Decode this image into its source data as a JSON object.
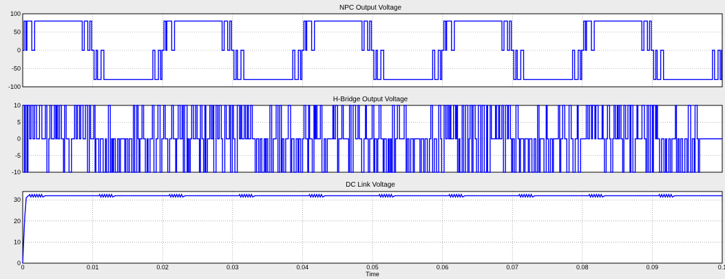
{
  "xlabel": "Time",
  "x_ticks": [
    "0",
    "0.01",
    "0.02",
    "0.03",
    "0.04",
    "0.05",
    "0.06",
    "0.07",
    "0.08",
    "0.09",
    "0.1"
  ],
  "xlim": [
    0,
    0.1
  ],
  "color": "#0000ff",
  "chart_data": [
    {
      "type": "line",
      "title": "NPC Output Voltage",
      "xlabel": "",
      "ylabel": "",
      "ylim": [
        -100,
        100
      ],
      "y_ticks": [
        "100",
        "50",
        "0",
        "-50",
        "-100"
      ],
      "grid": true,
      "series": [
        {
          "description_period_s": 0.02,
          "levels": [
            80,
            0,
            -80
          ]
        }
      ]
    },
    {
      "type": "line",
      "title": "H-Bridge Output Voltage",
      "xlabel": "",
      "ylabel": "",
      "ylim": [
        -10,
        10
      ],
      "y_ticks": [
        "10",
        "5",
        "0",
        "-5",
        "-10"
      ],
      "grid": true,
      "series": [
        {
          "levels": [
            10,
            0,
            -10
          ]
        }
      ]
    },
    {
      "type": "line",
      "title": "DC Link Voltage",
      "xlabel": "Time",
      "ylabel": "",
      "ylim": [
        0,
        34
      ],
      "y_ticks": [
        "30",
        "20",
        "10",
        "0"
      ],
      "grid": true,
      "series": [
        {
          "rise_end_s": 0.0005,
          "steady_value": 32,
          "ripple_amplitude": 0.6
        }
      ]
    }
  ]
}
